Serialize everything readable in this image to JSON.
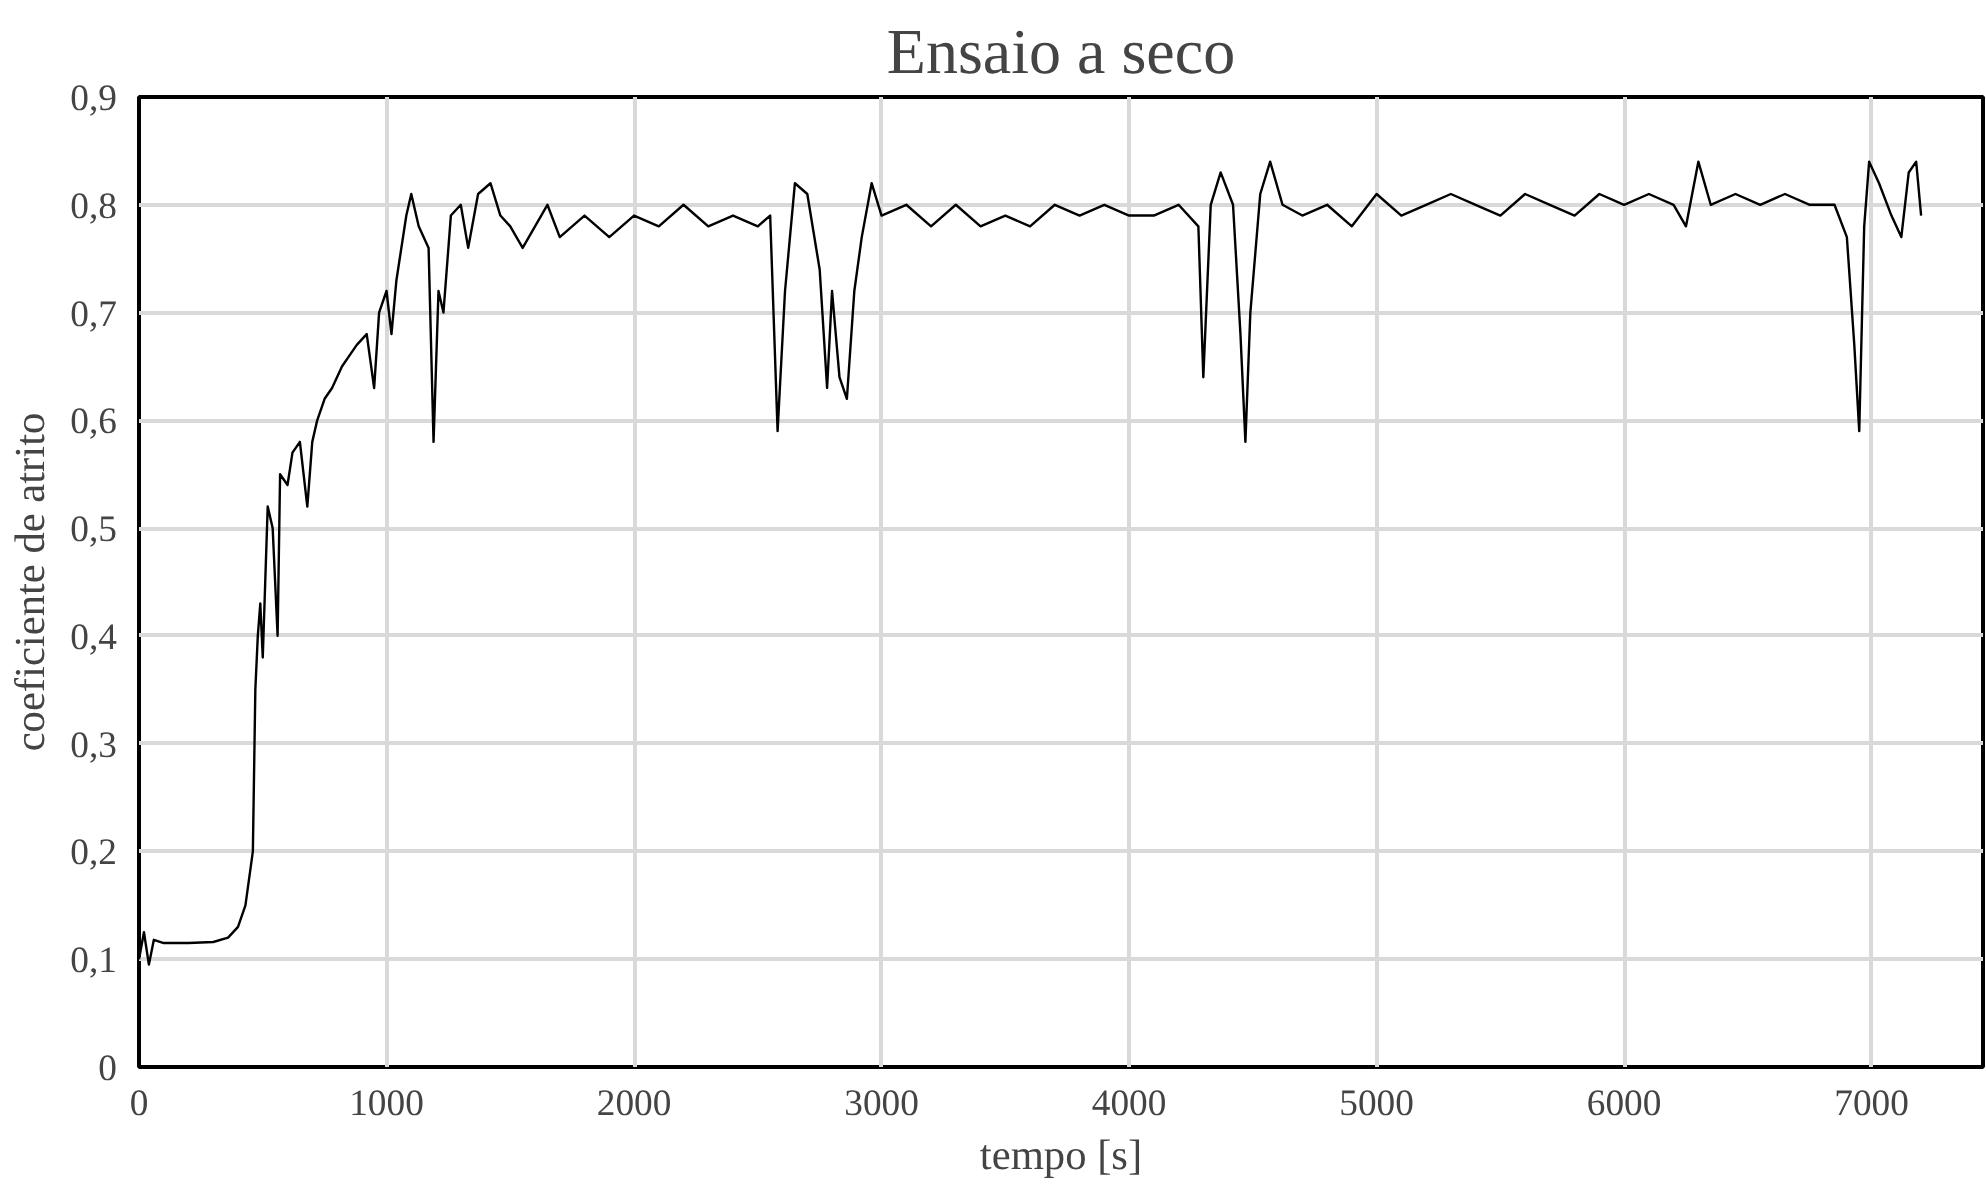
{
  "chart_data": {
    "type": "line",
    "title": "Ensaio a seco",
    "xlabel": "tempo [s]",
    "ylabel": "coeficiente de atrito",
    "series": [
      {
        "color": "#000000",
        "x": [
          0,
          20,
          40,
          60,
          100,
          200,
          300,
          360,
          400,
          430,
          460,
          470,
          480,
          490,
          500,
          510,
          520,
          540,
          560,
          570,
          600,
          620,
          650,
          680,
          700,
          720,
          750,
          780,
          820,
          850,
          880,
          920,
          950,
          970,
          1000,
          1020,
          1040,
          1080,
          1100,
          1130,
          1170,
          1190,
          1210,
          1230,
          1260,
          1300,
          1330,
          1370,
          1420,
          1460,
          1500,
          1550,
          1600,
          1650,
          1700,
          1800,
          1900,
          2000,
          2100,
          2200,
          2300,
          2400,
          2500,
          2550,
          2580,
          2610,
          2650,
          2700,
          2750,
          2780,
          2800,
          2830,
          2860,
          2890,
          2920,
          2960,
          3000,
          3100,
          3200,
          3300,
          3400,
          3500,
          3600,
          3700,
          3800,
          3900,
          4000,
          4100,
          4200,
          4280,
          4300,
          4330,
          4370,
          4420,
          4450,
          4470,
          4490,
          4530,
          4570,
          4620,
          4700,
          4800,
          4900,
          5000,
          5100,
          5200,
          5300,
          5400,
          5500,
          5600,
          5700,
          5800,
          5900,
          6000,
          6100,
          6200,
          6250,
          6300,
          6350,
          6450,
          6550,
          6650,
          6750,
          6850,
          6900,
          6930,
          6950,
          6970,
          6990,
          7030,
          7080,
          7120,
          7150,
          7180,
          7200
        ],
        "values": [
          0.1,
          0.125,
          0.095,
          0.118,
          0.115,
          0.115,
          0.116,
          0.12,
          0.13,
          0.15,
          0.2,
          0.35,
          0.4,
          0.43,
          0.38,
          0.45,
          0.52,
          0.5,
          0.4,
          0.55,
          0.54,
          0.57,
          0.58,
          0.52,
          0.58,
          0.6,
          0.62,
          0.63,
          0.65,
          0.66,
          0.67,
          0.68,
          0.63,
          0.7,
          0.72,
          0.68,
          0.73,
          0.79,
          0.81,
          0.78,
          0.76,
          0.58,
          0.72,
          0.7,
          0.79,
          0.8,
          0.76,
          0.81,
          0.82,
          0.79,
          0.78,
          0.76,
          0.78,
          0.8,
          0.77,
          0.79,
          0.77,
          0.79,
          0.78,
          0.8,
          0.78,
          0.79,
          0.78,
          0.79,
          0.59,
          0.72,
          0.82,
          0.81,
          0.74,
          0.63,
          0.72,
          0.64,
          0.62,
          0.72,
          0.77,
          0.82,
          0.79,
          0.8,
          0.78,
          0.8,
          0.78,
          0.79,
          0.78,
          0.8,
          0.79,
          0.8,
          0.79,
          0.79,
          0.8,
          0.78,
          0.64,
          0.8,
          0.83,
          0.8,
          0.68,
          0.58,
          0.7,
          0.81,
          0.84,
          0.8,
          0.79,
          0.8,
          0.78,
          0.81,
          0.79,
          0.8,
          0.81,
          0.8,
          0.79,
          0.81,
          0.8,
          0.79,
          0.81,
          0.8,
          0.81,
          0.8,
          0.78,
          0.84,
          0.8,
          0.81,
          0.8,
          0.81,
          0.8,
          0.8,
          0.77,
          0.67,
          0.59,
          0.78,
          0.84,
          0.82,
          0.79,
          0.77,
          0.83,
          0.84,
          0.79
        ]
      }
    ],
    "xlim": [
      0,
      7450
    ],
    "xticks": [
      0,
      1000,
      2000,
      3000,
      4000,
      5000,
      6000,
      7000
    ],
    "ylim": [
      0,
      0.9
    ],
    "yticks": [
      {
        "value": 0,
        "label": "0"
      },
      {
        "value": 0.1,
        "label": "0,1"
      },
      {
        "value": 0.2,
        "label": "0,2"
      },
      {
        "value": 0.3,
        "label": "0,3"
      },
      {
        "value": 0.4,
        "label": "0,4"
      },
      {
        "value": 0.5,
        "label": "0,5"
      },
      {
        "value": 0.6,
        "label": "0,6"
      },
      {
        "value": 0.7,
        "label": "0,7"
      },
      {
        "value": 0.8,
        "label": "0,8"
      },
      {
        "value": 0.9,
        "label": "0,9"
      }
    ],
    "grid": true
  }
}
